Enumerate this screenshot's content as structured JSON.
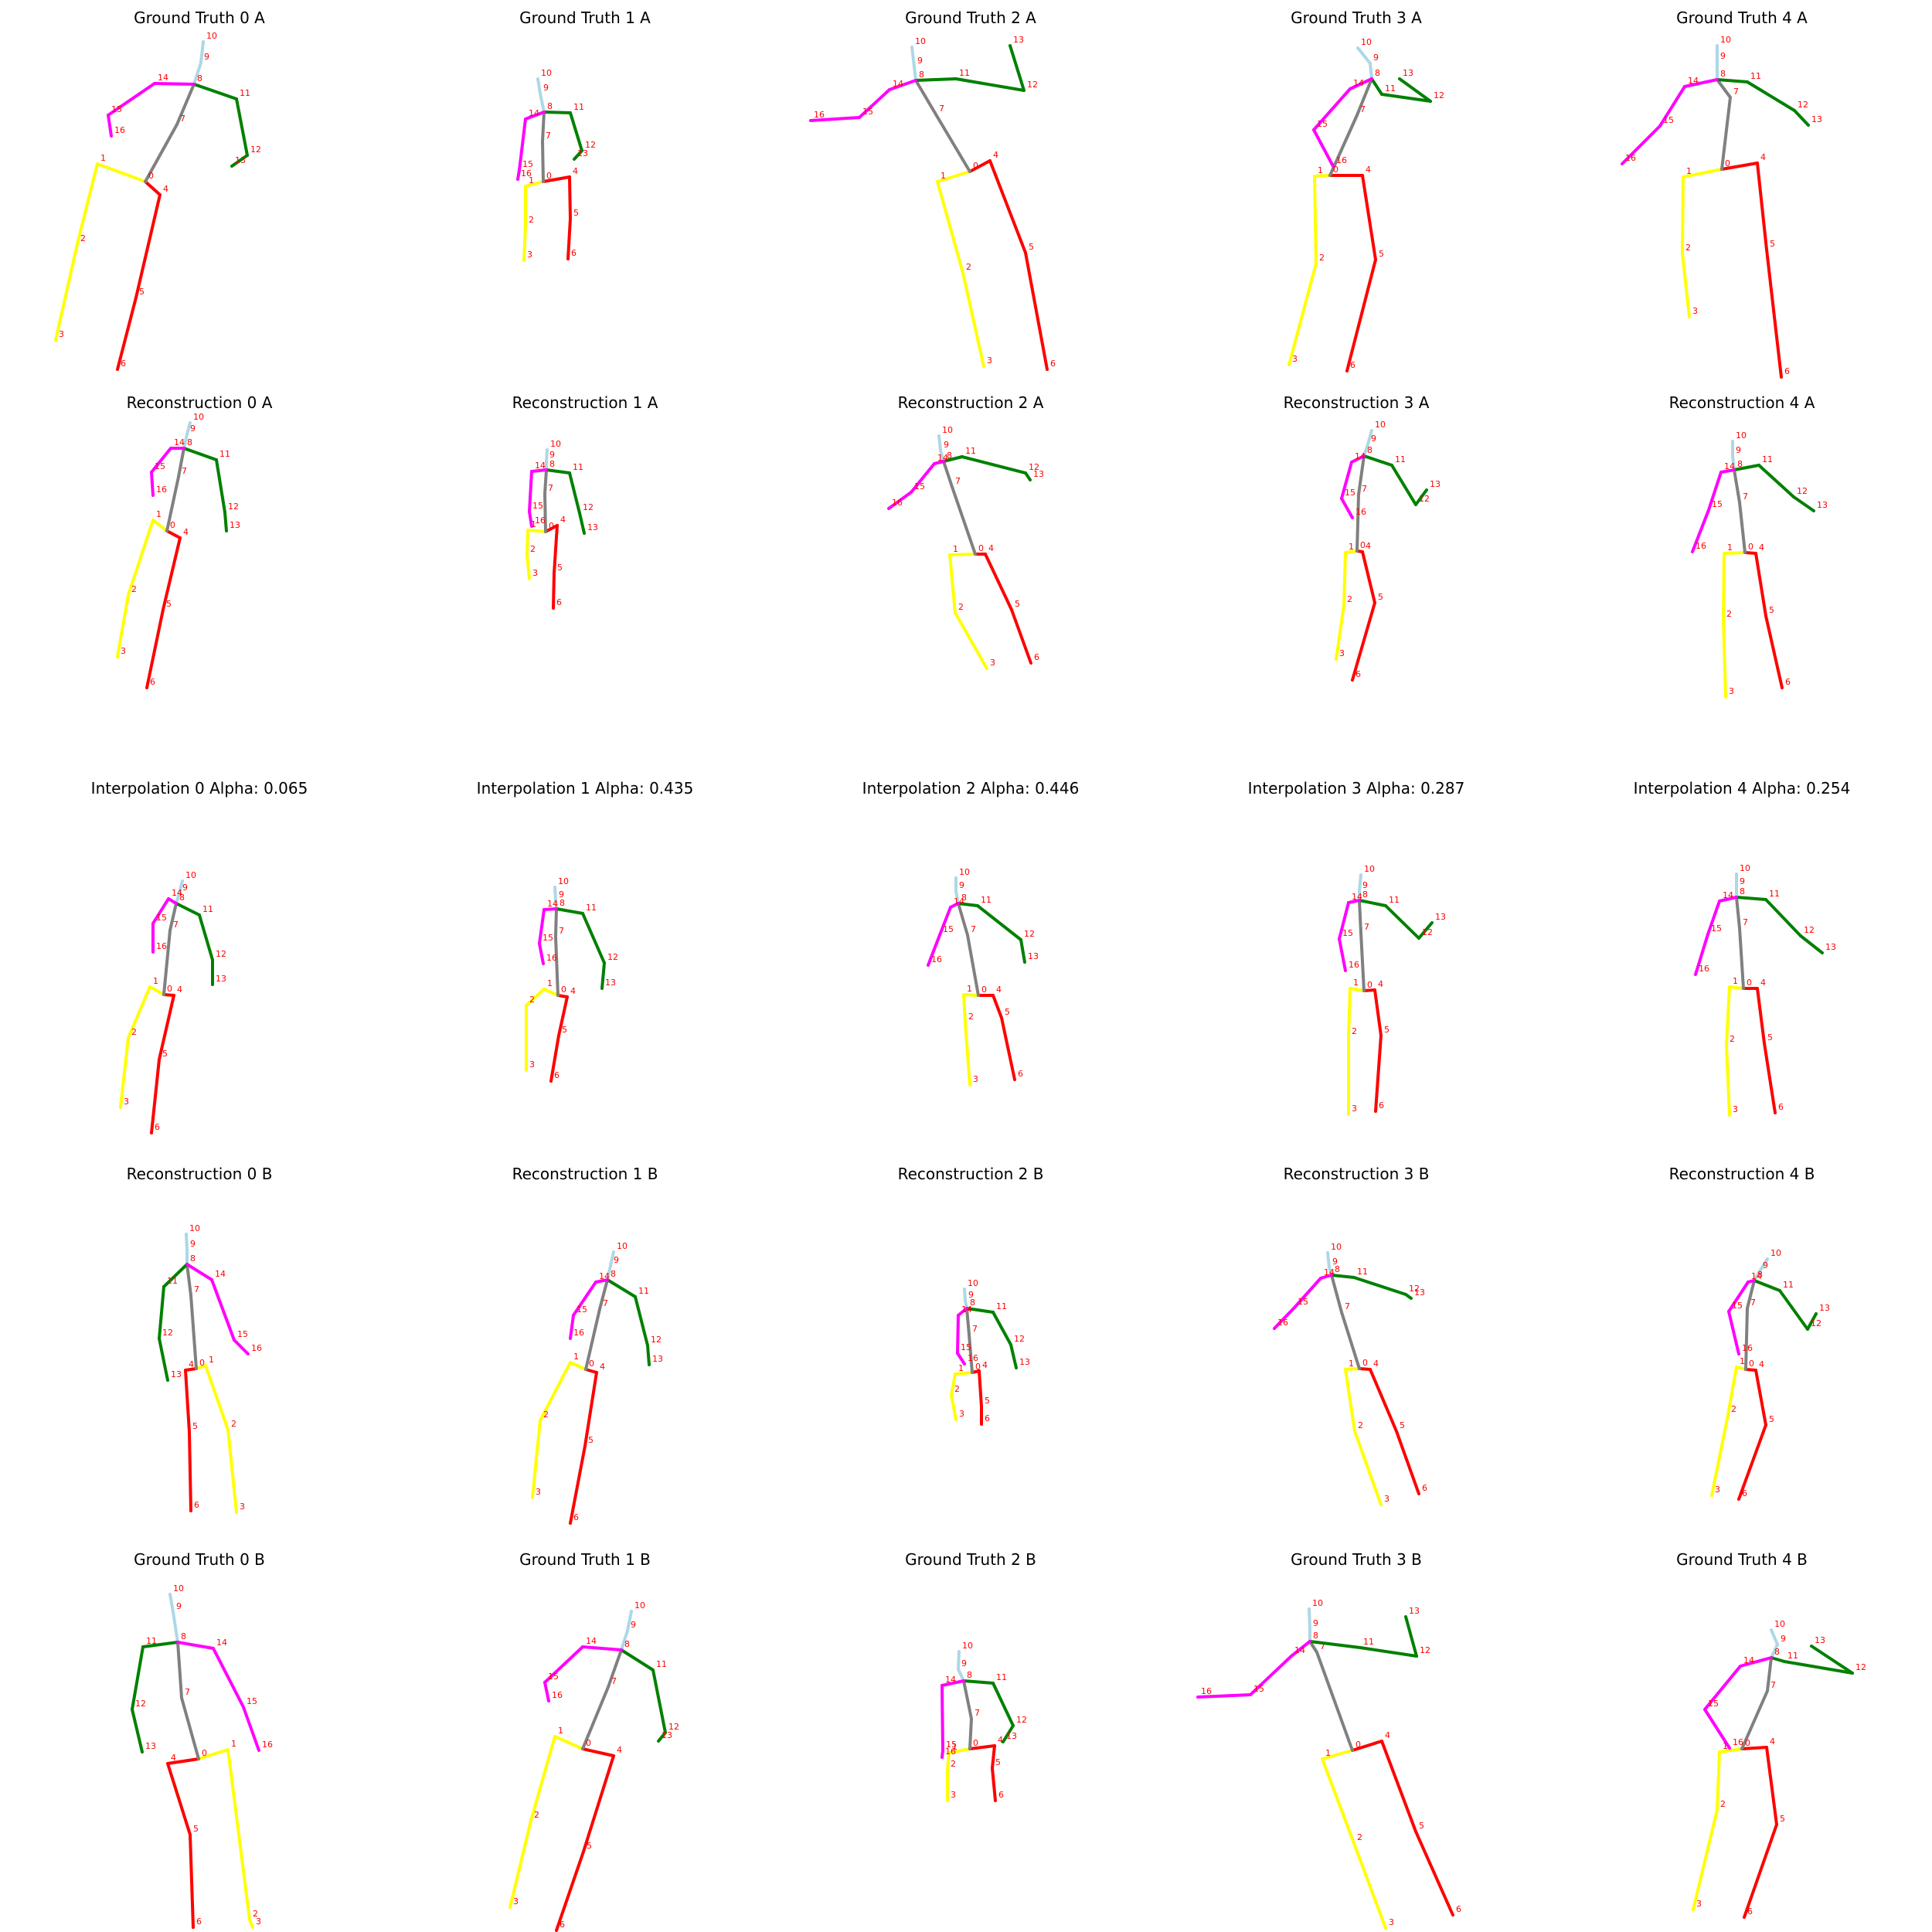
{
  "figure": {
    "rows": [
      [
        "Ground Truth 0 A",
        "Ground Truth 1 A",
        "Ground Truth 2 A",
        "Ground Truth 3 A",
        "Ground Truth 4 A"
      ],
      [
        "Reconstruction 0 A",
        "Reconstruction 1 A",
        "Reconstruction 2 A",
        "Reconstruction 3 A",
        "Reconstruction 4 A"
      ],
      [
        "Interpolation 0 Alpha: 0.065",
        "Interpolation 1 Alpha: 0.435",
        "Interpolation 2 Alpha: 0.446",
        "Interpolation 3 Alpha: 0.287",
        "Interpolation 4 Alpha: 0.254"
      ],
      [
        "Reconstruction 0 B",
        "Reconstruction 1 B",
        "Reconstruction 2 B",
        "Reconstruction 3 B",
        "Reconstruction 4 B"
      ],
      [
        "Ground Truth 0 B",
        "Ground Truth 1 B",
        "Ground Truth 2 B",
        "Ground Truth 3 B",
        "Ground Truth 4 B"
      ]
    ]
  },
  "skeleton": {
    "joint_labels": [
      "0",
      "1",
      "2",
      "3",
      "4",
      "5",
      "6",
      "7",
      "8",
      "9",
      "10",
      "11",
      "12",
      "13",
      "14",
      "15",
      "16"
    ],
    "bones": [
      [
        0,
        1
      ],
      [
        1,
        2
      ],
      [
        2,
        3
      ],
      [
        0,
        4
      ],
      [
        4,
        5
      ],
      [
        5,
        6
      ],
      [
        0,
        7
      ],
      [
        7,
        8
      ],
      [
        8,
        9
      ],
      [
        9,
        10
      ],
      [
        8,
        11
      ],
      [
        11,
        12
      ],
      [
        12,
        13
      ],
      [
        8,
        14
      ],
      [
        14,
        15
      ],
      [
        15,
        16
      ]
    ],
    "bone_colors": [
      "#ffff00",
      "#ffff00",
      "#ffff00",
      "#ff0000",
      "#ff0000",
      "#ff0000",
      "#808080",
      "#808080",
      "#add8e6",
      "#add8e6",
      "#008000",
      "#008000",
      "#008000",
      "#ff00ff",
      "#ff00ff",
      "#ff00ff"
    ],
    "label_color": "#ff0000"
  }
}
